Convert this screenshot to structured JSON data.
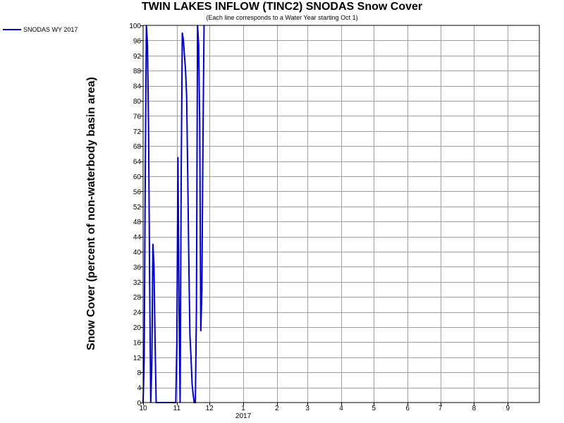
{
  "chart_data": {
    "type": "line",
    "title": "TWIN LAKES INFLOW (TINC2) SNODAS Snow Cover",
    "subtitle": "(Each line corresponds to a Water Year starting Oct 1)",
    "xlabel": "",
    "ylabel": "Snow Cover (percent of non-waterbody basin area)",
    "ylim": [
      0,
      100
    ],
    "yticks": [
      0,
      4,
      8,
      12,
      16,
      20,
      24,
      28,
      32,
      36,
      40,
      44,
      48,
      52,
      56,
      60,
      64,
      68,
      72,
      76,
      80,
      84,
      88,
      92,
      96,
      100
    ],
    "xlim": [
      "2016-10-01",
      "2017-09-30"
    ],
    "xticks": [
      {
        "date": "2016-10-01",
        "label": "10"
      },
      {
        "date": "2016-11-01",
        "label": "11"
      },
      {
        "date": "2016-12-01",
        "label": "12"
      },
      {
        "date": "2017-01-01",
        "label": "1"
      },
      {
        "date": "2017-02-01",
        "label": "2"
      },
      {
        "date": "2017-03-01",
        "label": "3"
      },
      {
        "date": "2017-04-01",
        "label": "4"
      },
      {
        "date": "2017-05-01",
        "label": "5"
      },
      {
        "date": "2017-06-01",
        "label": "6"
      },
      {
        "date": "2017-07-01",
        "label": "7"
      },
      {
        "date": "2017-08-01",
        "label": "8"
      },
      {
        "date": "2017-09-01",
        "label": "9"
      }
    ],
    "year_label": "2017",
    "year_label_date": "2017-01-01",
    "grid": true,
    "legend_position": "top-left",
    "series": [
      {
        "name": "SNODAS WY 2017",
        "color": "#0000cc",
        "points": [
          [
            "2016-10-01",
            0
          ],
          [
            "2016-10-02",
            12
          ],
          [
            "2016-10-03",
            62
          ],
          [
            "2016-10-04",
            100
          ],
          [
            "2016-10-05",
            95
          ],
          [
            "2016-10-06",
            73
          ],
          [
            "2016-10-07",
            32
          ],
          [
            "2016-10-08",
            0
          ],
          [
            "2016-10-09",
            10
          ],
          [
            "2016-10-10",
            42
          ],
          [
            "2016-10-11",
            36
          ],
          [
            "2016-10-12",
            16
          ],
          [
            "2016-10-13",
            0
          ],
          [
            "2016-10-20",
            0
          ],
          [
            "2016-10-31",
            0
          ],
          [
            "2016-11-01",
            16
          ],
          [
            "2016-11-02",
            65
          ],
          [
            "2016-11-03",
            25
          ],
          [
            "2016-11-04",
            0
          ],
          [
            "2016-11-05",
            61
          ],
          [
            "2016-11-06",
            98
          ],
          [
            "2016-11-07",
            96
          ],
          [
            "2016-11-08",
            92
          ],
          [
            "2016-11-09",
            88
          ],
          [
            "2016-11-10",
            81
          ],
          [
            "2016-11-11",
            60
          ],
          [
            "2016-11-12",
            37
          ],
          [
            "2016-11-13",
            18
          ],
          [
            "2016-11-14",
            12
          ],
          [
            "2016-11-15",
            5
          ],
          [
            "2016-11-16",
            2
          ],
          [
            "2016-11-17",
            0
          ],
          [
            "2016-11-18",
            0
          ],
          [
            "2016-11-19",
            25
          ],
          [
            "2016-11-20",
            100
          ],
          [
            "2016-11-21",
            95
          ],
          [
            "2016-11-22",
            74
          ],
          [
            "2016-11-23",
            19
          ],
          [
            "2016-11-24",
            30
          ],
          [
            "2016-11-25",
            70
          ],
          [
            "2016-11-26",
            100
          ]
        ]
      }
    ]
  }
}
